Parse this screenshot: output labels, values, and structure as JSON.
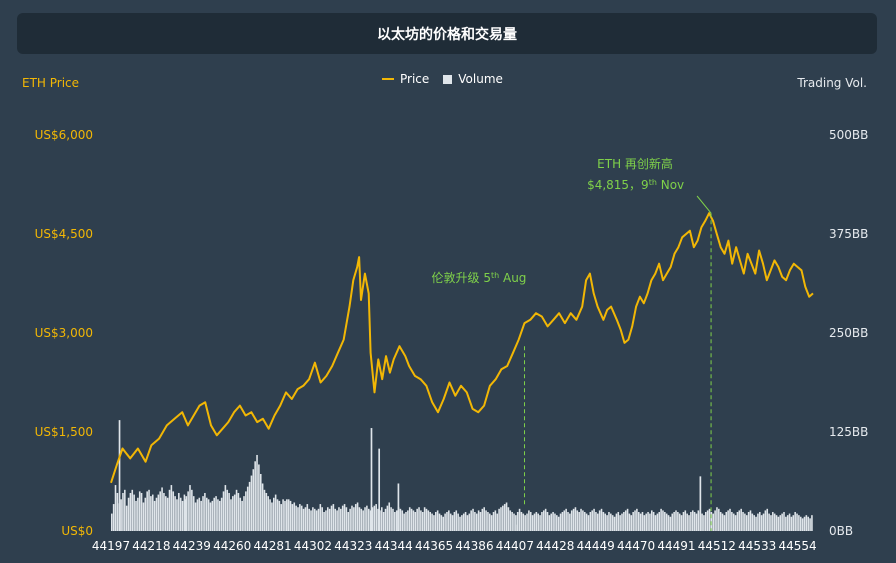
{
  "title": "以太坊的价格和交易量",
  "legend": {
    "price": "Price",
    "volume": "Volume"
  },
  "colors": {
    "price": "#f2b705",
    "volume": "#dfe5ea",
    "annotation": "#7fd14a",
    "background": "#2f3f4e",
    "title_bg": "#1f2c37"
  },
  "chart_data": {
    "type": "line",
    "title": "以太坊的价格和交易量",
    "y_left_title": "ETH Price",
    "y_right_title": "Trading Vol.",
    "x_ticks": [
      "44197",
      "44218",
      "44239",
      "44260",
      "44281",
      "44302",
      "44323",
      "44344",
      "44365",
      "44386",
      "44407",
      "44428",
      "44449",
      "44470",
      "44491",
      "44512",
      "44533",
      "44554"
    ],
    "x_range": [
      44197,
      44562
    ],
    "y_left_ticks": [
      "US$0",
      "US$1,500",
      "US$3,000",
      "US$4,500",
      "US$6,000"
    ],
    "y_left_range": [
      0,
      6000
    ],
    "y_right_ticks": [
      "0BB",
      "125BB",
      "250BB",
      "375BB",
      "500BB"
    ],
    "y_right_range": [
      0,
      500
    ],
    "series": [
      {
        "name": "Price",
        "type": "line",
        "points": [
          [
            44197,
            730
          ],
          [
            44200,
            1000
          ],
          [
            44203,
            1250
          ],
          [
            44207,
            1100
          ],
          [
            44211,
            1250
          ],
          [
            44215,
            1050
          ],
          [
            44218,
            1300
          ],
          [
            44222,
            1400
          ],
          [
            44226,
            1600
          ],
          [
            44230,
            1700
          ],
          [
            44234,
            1800
          ],
          [
            44237,
            1600
          ],
          [
            44240,
            1750
          ],
          [
            44243,
            1900
          ],
          [
            44246,
            1950
          ],
          [
            44249,
            1600
          ],
          [
            44252,
            1450
          ],
          [
            44255,
            1550
          ],
          [
            44258,
            1650
          ],
          [
            44261,
            1800
          ],
          [
            44264,
            1900
          ],
          [
            44267,
            1750
          ],
          [
            44270,
            1800
          ],
          [
            44273,
            1650
          ],
          [
            44276,
            1700
          ],
          [
            44279,
            1550
          ],
          [
            44282,
            1750
          ],
          [
            44285,
            1900
          ],
          [
            44288,
            2100
          ],
          [
            44291,
            2000
          ],
          [
            44294,
            2150
          ],
          [
            44297,
            2200
          ],
          [
            44300,
            2300
          ],
          [
            44303,
            2550
          ],
          [
            44306,
            2250
          ],
          [
            44309,
            2350
          ],
          [
            44312,
            2500
          ],
          [
            44315,
            2700
          ],
          [
            44318,
            2900
          ],
          [
            44321,
            3400
          ],
          [
            44323,
            3800
          ],
          [
            44325,
            4000
          ],
          [
            44326,
            4150
          ],
          [
            44327,
            3500
          ],
          [
            44329,
            3900
          ],
          [
            44331,
            3600
          ],
          [
            44332,
            2700
          ],
          [
            44334,
            2100
          ],
          [
            44336,
            2600
          ],
          [
            44338,
            2300
          ],
          [
            44340,
            2650
          ],
          [
            44342,
            2400
          ],
          [
            44344,
            2600
          ],
          [
            44347,
            2800
          ],
          [
            44350,
            2650
          ],
          [
            44352,
            2500
          ],
          [
            44355,
            2350
          ],
          [
            44358,
            2300
          ],
          [
            44361,
            2200
          ],
          [
            44364,
            1950
          ],
          [
            44367,
            1800
          ],
          [
            44370,
            2000
          ],
          [
            44373,
            2250
          ],
          [
            44376,
            2050
          ],
          [
            44379,
            2200
          ],
          [
            44382,
            2100
          ],
          [
            44385,
            1850
          ],
          [
            44388,
            1800
          ],
          [
            44391,
            1900
          ],
          [
            44394,
            2200
          ],
          [
            44397,
            2300
          ],
          [
            44400,
            2450
          ],
          [
            44403,
            2500
          ],
          [
            44406,
            2700
          ],
          [
            44409,
            2900
          ],
          [
            44412,
            3150
          ],
          [
            44415,
            3200
          ],
          [
            44418,
            3300
          ],
          [
            44421,
            3250
          ],
          [
            44424,
            3100
          ],
          [
            44427,
            3200
          ],
          [
            44430,
            3300
          ],
          [
            44433,
            3150
          ],
          [
            44436,
            3300
          ],
          [
            44439,
            3200
          ],
          [
            44442,
            3400
          ],
          [
            44444,
            3800
          ],
          [
            44446,
            3900
          ],
          [
            44448,
            3600
          ],
          [
            44450,
            3400
          ],
          [
            44453,
            3200
          ],
          [
            44455,
            3350
          ],
          [
            44457,
            3400
          ],
          [
            44460,
            3200
          ],
          [
            44462,
            3050
          ],
          [
            44464,
            2850
          ],
          [
            44466,
            2900
          ],
          [
            44468,
            3100
          ],
          [
            44470,
            3400
          ],
          [
            44472,
            3550
          ],
          [
            44474,
            3450
          ],
          [
            44476,
            3600
          ],
          [
            44478,
            3800
          ],
          [
            44480,
            3900
          ],
          [
            44482,
            4050
          ],
          [
            44484,
            3800
          ],
          [
            44486,
            3900
          ],
          [
            44488,
            4000
          ],
          [
            44490,
            4200
          ],
          [
            44492,
            4300
          ],
          [
            44494,
            4450
          ],
          [
            44496,
            4500
          ],
          [
            44498,
            4550
          ],
          [
            44500,
            4300
          ],
          [
            44502,
            4400
          ],
          [
            44504,
            4600
          ],
          [
            44506,
            4700
          ],
          [
            44508,
            4815
          ],
          [
            44510,
            4700
          ],
          [
            44512,
            4500
          ],
          [
            44514,
            4300
          ],
          [
            44516,
            4200
          ],
          [
            44518,
            4400
          ],
          [
            44520,
            4050
          ],
          [
            44522,
            4300
          ],
          [
            44524,
            4100
          ],
          [
            44526,
            3900
          ],
          [
            44528,
            4200
          ],
          [
            44530,
            4050
          ],
          [
            44532,
            3900
          ],
          [
            44534,
            4250
          ],
          [
            44536,
            4050
          ],
          [
            44538,
            3800
          ],
          [
            44540,
            3950
          ],
          [
            44542,
            4100
          ],
          [
            44544,
            4000
          ],
          [
            44546,
            3850
          ],
          [
            44548,
            3800
          ],
          [
            44550,
            3950
          ],
          [
            44552,
            4050
          ],
          [
            44554,
            4000
          ],
          [
            44556,
            3950
          ],
          [
            44558,
            3700
          ],
          [
            44560,
            3550
          ],
          [
            44562,
            3600
          ]
        ]
      },
      {
        "name": "Volume",
        "type": "bar",
        "values": [
          22,
          34,
          58,
          48,
          35,
          40,
          48,
          52,
          32,
          42,
          48,
          52,
          46,
          38,
          42,
          50,
          48,
          36,
          42,
          50,
          52,
          44,
          46,
          38,
          42,
          46,
          50,
          55,
          48,
          44,
          42,
          52,
          58,
          50,
          44,
          40,
          48,
          42,
          38,
          46,
          44,
          50,
          58,
          52,
          44,
          36,
          40,
          42,
          38,
          44,
          48,
          42,
          40,
          36,
          38,
          42,
          44,
          40,
          38,
          42,
          50,
          58,
          52,
          48,
          40,
          44,
          46,
          52,
          48,
          42,
          38,
          44,
          50,
          56,
          62,
          70,
          78,
          88,
          96,
          84,
          72,
          60,
          52,
          48,
          44,
          40,
          36,
          42,
          46,
          40,
          38,
          34,
          40,
          38,
          36,
          40,
          38,
          34,
          36,
          32,
          30,
          34,
          32,
          28,
          30,
          34,
          28,
          26,
          30,
          28,
          26,
          28,
          34,
          30,
          24,
          26,
          30,
          28,
          32,
          34,
          28,
          26,
          30,
          28,
          32,
          34,
          30,
          24,
          28,
          32,
          30,
          34,
          36,
          30,
          28,
          26,
          30,
          32,
          28,
          26,
          30,
          32,
          34,
          28,
          26,
          30,
          24,
          28,
          32,
          36,
          30,
          28,
          24,
          26,
          30,
          28,
          26,
          22,
          24,
          26,
          30,
          28,
          26,
          24,
          28,
          30,
          26,
          24,
          30,
          28,
          26,
          24,
          22,
          20,
          24,
          26,
          22,
          20,
          18,
          22,
          24,
          26,
          22,
          20,
          24,
          26,
          22,
          18,
          20,
          22,
          24,
          20,
          22,
          26,
          28,
          24,
          22,
          26,
          24,
          28,
          30,
          26,
          24,
          22,
          20,
          24,
          26,
          22,
          28,
          30,
          32,
          34,
          36,
          30,
          26,
          24,
          22,
          20,
          24,
          28,
          24,
          22,
          20,
          22,
          26,
          24,
          20,
          22,
          24,
          22,
          20,
          24,
          26,
          28,
          24,
          20,
          22,
          24,
          22,
          20,
          18,
          22,
          24,
          26,
          28,
          24,
          22,
          26,
          28,
          30,
          26,
          24,
          28,
          26,
          24,
          22,
          20,
          24,
          26,
          28,
          24,
          22,
          26,
          28,
          24,
          22,
          20,
          24,
          22,
          20,
          18,
          22,
          24,
          20,
          22,
          24,
          26,
          28,
          22,
          20,
          24,
          26,
          28,
          24,
          22,
          24,
          20,
          22,
          24,
          22,
          26,
          24,
          20,
          22,
          24,
          28,
          26,
          24,
          22,
          20,
          18,
          22,
          24,
          26,
          24,
          22,
          20,
          24,
          26,
          22,
          20,
          24,
          26,
          24,
          22,
          26,
          24,
          22,
          20,
          24,
          26,
          28,
          24,
          22,
          26,
          30,
          28,
          24,
          22,
          20,
          24,
          26,
          28,
          24,
          22,
          20,
          24,
          26,
          28,
          24,
          22,
          20,
          24,
          26,
          22,
          20,
          18,
          22,
          24,
          20,
          22,
          26,
          28,
          22,
          20,
          24,
          22,
          20,
          18,
          20,
          22,
          24,
          18,
          20,
          22,
          18,
          20,
          24,
          22,
          20,
          18,
          16,
          18,
          20,
          18,
          16,
          20
        ],
        "spikes": [
          [
            44201,
            140
          ],
          [
            44235,
            40
          ],
          [
            44288,
            40
          ],
          [
            44332,
            130
          ],
          [
            44336,
            104
          ],
          [
            44346,
            60
          ],
          [
            44408,
            8
          ],
          [
            44503,
            69
          ]
        ]
      }
    ],
    "annotations": [
      {
        "text": "伦敦升级 5th Aug",
        "label": "伦敦升级 5",
        "sup": "th",
        "suffix": " Aug",
        "x": 44412,
        "from_price": 2800,
        "to_price": 400
      },
      {
        "text_line1": "ETH 再创新高",
        "label2": "$4,815，9",
        "sup2": "th",
        "suffix2": " Nov",
        "x": 44509,
        "price": 4815
      }
    ],
    "grid": false,
    "legend_position": "top-center"
  }
}
